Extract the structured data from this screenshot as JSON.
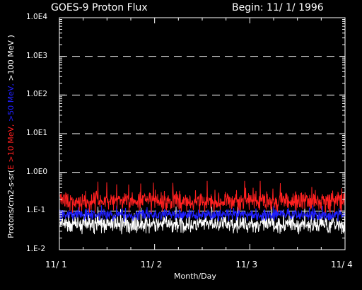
{
  "header": {
    "title": "GOES-9 Proton Flux",
    "begin": "Begin: 11/ 1/ 1996"
  },
  "chart_data": {
    "type": "line",
    "title": "GOES-9 Proton Flux",
    "xlabel": "Month/Day",
    "ylabel_prefix": "Protons/cm2-s-sr(",
    "ylabel_parts": [
      {
        "text": "E >10 MeV,",
        "color": "#ff2020"
      },
      {
        "text": " >50 MeV,",
        "color": "#2020ff"
      },
      {
        "text": " >100 MeV )",
        "color": "#ffffff"
      }
    ],
    "y_scale": "log",
    "ylim": [
      0.01,
      10000
    ],
    "y_ticks": [
      {
        "value": 10000,
        "label": "1.0E4"
      },
      {
        "value": 1000,
        "label": "1.0E3"
      },
      {
        "value": 100,
        "label": "1.0E2"
      },
      {
        "value": 10,
        "label": "1.0E1"
      },
      {
        "value": 1,
        "label": "1.0E0"
      },
      {
        "value": 0.1,
        "label": "1.E-1"
      },
      {
        "value": 0.01,
        "label": "1.E-2"
      }
    ],
    "x_ticks": [
      {
        "day": 0,
        "label": "11/ 1"
      },
      {
        "day": 1,
        "label": "11/ 2"
      },
      {
        "day": 2,
        "label": "11/ 3"
      },
      {
        "day": 3,
        "label": "11/ 4"
      }
    ],
    "xlim": [
      0,
      3
    ],
    "grid": "dashed horizontal at each decade",
    "series": [
      {
        "name": ">10 MeV",
        "color": "#ff2020",
        "typical": 0.18,
        "min": 0.09,
        "max": 0.6
      },
      {
        "name": ">50 MeV",
        "color": "#2020ff",
        "typical": 0.08,
        "min": 0.045,
        "max": 0.14
      },
      {
        "name": ">100 MeV",
        "color": "#ffffff",
        "typical": 0.045,
        "min": 0.025,
        "max": 0.13
      }
    ]
  }
}
